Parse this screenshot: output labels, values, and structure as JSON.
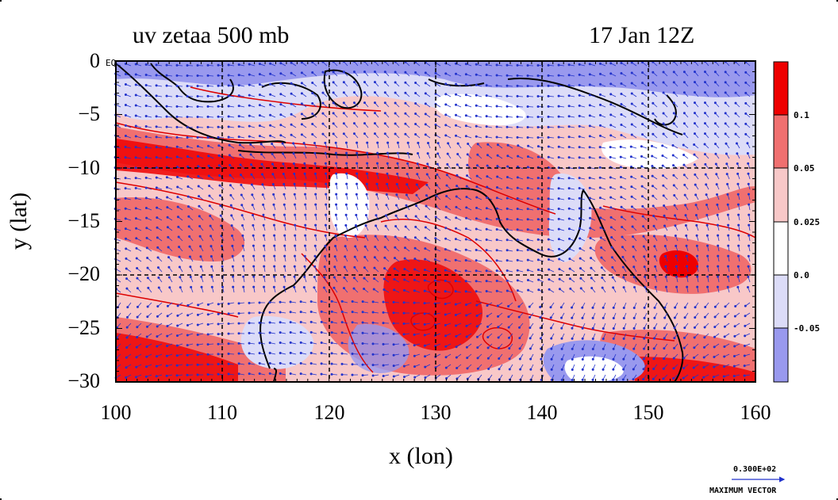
{
  "title": {
    "left": "uv zetaa 500 mb",
    "right": "17 Jan 12Z"
  },
  "axes": {
    "xlabel": "x (lon)",
    "ylabel": "y (lat)",
    "x_ticks": [
      "100",
      "110",
      "120",
      "130",
      "140",
      "150",
      "160"
    ],
    "y_ticks": [
      "0",
      "−5",
      "−10",
      "−15",
      "−20",
      "−25",
      "−30"
    ],
    "eq_label": "EQ"
  },
  "colorbar": {
    "labels": [
      "0.1",
      "0.05",
      "0.025",
      "0.0",
      "-0.05"
    ],
    "colors": [
      "#ee0000",
      "#f07070",
      "#f8c8c8",
      "#ffffff",
      "#dcdcf8",
      "#9999ee"
    ]
  },
  "vector_legend": {
    "value": "0.300E+02",
    "label": "MAXIMUM VECTOR"
  },
  "map_data": {
    "lon_range": [
      100,
      160
    ],
    "lat_range": [
      -30,
      0
    ],
    "grid_lon": [
      110,
      120,
      130,
      140,
      150
    ],
    "grid_lat": [
      -10,
      -20
    ],
    "field": "zetaa (absolute vorticity) at 500 mb with uv wind vectors",
    "colors": {
      "vector": "#2233cc",
      "coast": "#000000",
      "contour": "#dd0000"
    }
  }
}
